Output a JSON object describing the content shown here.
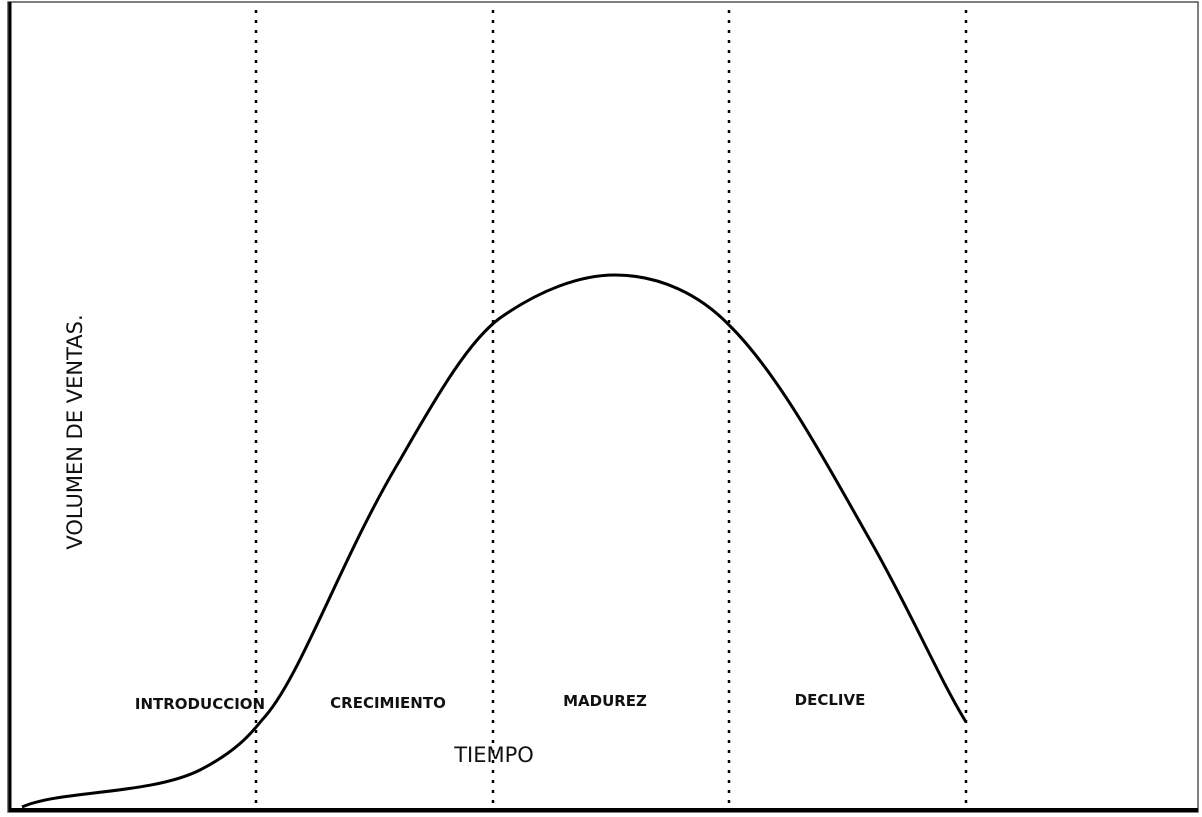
{
  "axes": {
    "y_label": "VOLUMEN DE VENTAS.",
    "x_label": "TIEMPO"
  },
  "stages": [
    "INTRODUCCION",
    "CRECIMIENTO",
    "MADUREZ",
    "DECLIVE"
  ]
}
